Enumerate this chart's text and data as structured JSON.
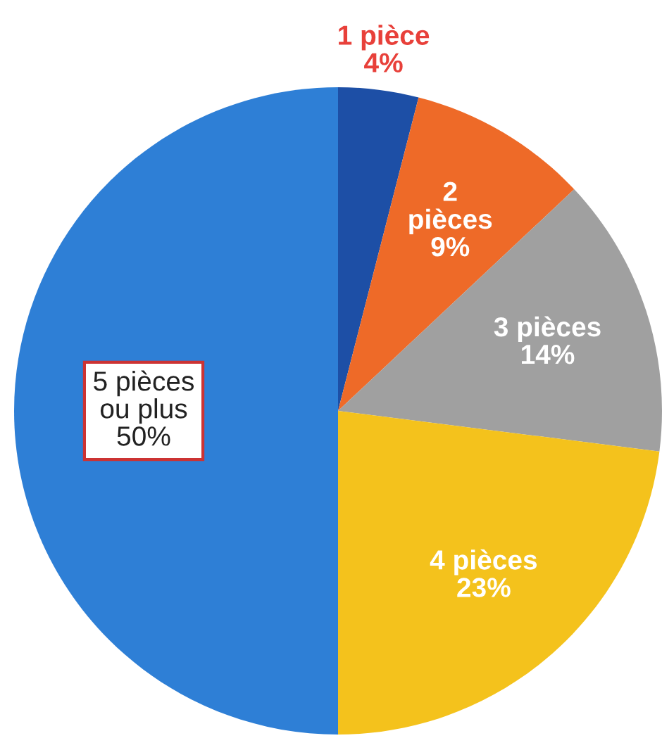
{
  "chart_data": {
    "type": "pie",
    "categories": [
      "1 pièce",
      "2\npièces",
      "3 pièces",
      "4 pièces",
      "5 pièces\nou plus"
    ],
    "values": [
      4,
      9,
      14,
      23,
      50
    ],
    "value_labels": [
      "4%",
      "9%",
      "14%",
      "23%",
      "50%"
    ],
    "colors": [
      "#1d4fa6",
      "#ee6a28",
      "#a0a0a0",
      "#f4c21c",
      "#2e7fd6"
    ],
    "legend": false
  }
}
